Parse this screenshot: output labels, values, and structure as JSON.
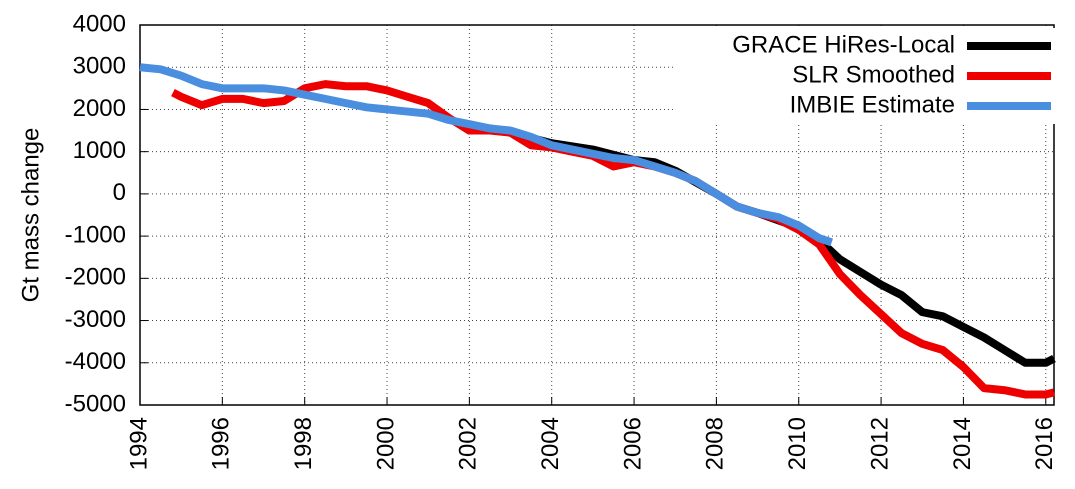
{
  "chart_data": {
    "type": "line",
    "ylabel": "Gt mass change",
    "xlim": [
      1994,
      2016.2
    ],
    "ylim": [
      -5000,
      4000
    ],
    "xticks": [
      1994,
      1996,
      1998,
      2000,
      2002,
      2004,
      2006,
      2008,
      2010,
      2012,
      2014,
      2016
    ],
    "yticks": [
      -5000,
      -4000,
      -3000,
      -2000,
      -1000,
      0,
      1000,
      2000,
      3000,
      4000
    ],
    "grid": true,
    "legend": "upper right",
    "series": [
      {
        "name": "GRACE HiRes-Local",
        "color": "#000000",
        "x": [
          2002.5,
          2003,
          2004,
          2005,
          2006,
          2006.5,
          2007,
          2008,
          2008.5,
          2009,
          2010,
          2010.5,
          2011,
          2011.5,
          2012,
          2012.5,
          2013,
          2013.5,
          2014,
          2014.5,
          2015,
          2015.5,
          2016,
          2016.2
        ],
        "values": [
          1550,
          1450,
          1200,
          1050,
          800,
          750,
          550,
          0,
          -300,
          -450,
          -800,
          -1100,
          -1550,
          -1850,
          -2150,
          -2400,
          -2800,
          -2900,
          -3150,
          -3400,
          -3700,
          -4000,
          -4000,
          -3900
        ]
      },
      {
        "name": "SLR Smoothed",
        "color": "#ee0000",
        "x": [
          1994.8,
          1995,
          1995.5,
          1996,
          1996.5,
          1997,
          1997.5,
          1998,
          1998.5,
          1999,
          1999.5,
          2000,
          2000.5,
          2001,
          2001.5,
          2002,
          2002.5,
          2003,
          2003.5,
          2004,
          2004.5,
          2005,
          2005.5,
          2006,
          2006.5,
          2007,
          2007.5,
          2008,
          2008.5,
          2009,
          2009.5,
          2010,
          2010.5,
          2011,
          2011.5,
          2012,
          2012.5,
          2013,
          2013.5,
          2014,
          2014.5,
          2015,
          2015.5,
          2016,
          2016.2
        ],
        "values": [
          2400,
          2300,
          2100,
          2250,
          2250,
          2150,
          2200,
          2500,
          2600,
          2550,
          2550,
          2450,
          2300,
          2150,
          1800,
          1500,
          1500,
          1450,
          1150,
          1100,
          1000,
          900,
          650,
          750,
          650,
          500,
          300,
          0,
          -300,
          -450,
          -600,
          -850,
          -1200,
          -1900,
          -2400,
          -2850,
          -3300,
          -3550,
          -3700,
          -4100,
          -4600,
          -4650,
          -4750,
          -4750,
          -4700
        ]
      },
      {
        "name": "IMBIE Estimate",
        "color": "#4a8ee0",
        "x": [
          1994,
          1994.5,
          1995,
          1995.5,
          1996,
          1996.5,
          1997,
          1997.5,
          1998,
          1998.5,
          1999,
          1999.5,
          2000,
          2000.5,
          2001,
          2001.5,
          2002,
          2002.5,
          2003,
          2003.5,
          2004,
          2004.5,
          2005,
          2005.5,
          2006,
          2006.5,
          2007,
          2007.5,
          2008,
          2008.5,
          2009,
          2009.5,
          2010,
          2010.5,
          2010.8
        ],
        "values": [
          3000,
          2950,
          2800,
          2600,
          2500,
          2500,
          2500,
          2450,
          2350,
          2250,
          2150,
          2050,
          2000,
          1950,
          1900,
          1750,
          1650,
          1550,
          1500,
          1350,
          1150,
          1050,
          950,
          850,
          800,
          650,
          500,
          300,
          0,
          -300,
          -450,
          -550,
          -750,
          -1050,
          -1150
        ]
      }
    ]
  }
}
